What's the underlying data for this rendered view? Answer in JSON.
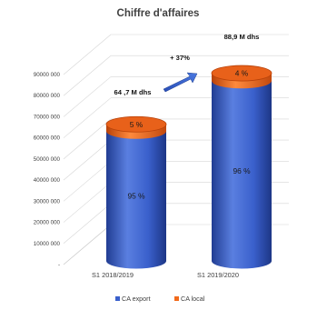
{
  "chart_data": {
    "type": "bar",
    "title": "Chiffre d'affaires",
    "categories": [
      "S1 2018/2019",
      "S1 2019/2020"
    ],
    "series": [
      {
        "name": "CA export",
        "values": [
          61465000,
          85344000
        ]
      },
      {
        "name": "CA local",
        "values": [
          3235000,
          3556000
        ]
      }
    ],
    "series_shares": [
      [
        "95 %",
        "5 %"
      ],
      [
        "96 %",
        "4 %"
      ]
    ],
    "totals": [
      "64 ,7 M dhs",
      "88,9 M dhs"
    ],
    "growth": "+ 37%",
    "yticks": [
      "-",
      "10000 000",
      "20000 000",
      "30000 000",
      "40000 000",
      "50000 000",
      "60000 000",
      "70000 000",
      "80000 000",
      "90000 000"
    ],
    "ylim": [
      0,
      90000000
    ],
    "stacked": true,
    "style_3d": "cylinder",
    "grid": true,
    "legend_position": "bottom",
    "colors": {
      "export": "#3a60cc",
      "export_dark": "#213d93",
      "export_light": "#5a7fe0",
      "local": "#f26a1b",
      "local_dark": "#b8420a",
      "arrow": "#2f59c8",
      "grid": "#d6d6d6",
      "text": "#404040"
    }
  }
}
